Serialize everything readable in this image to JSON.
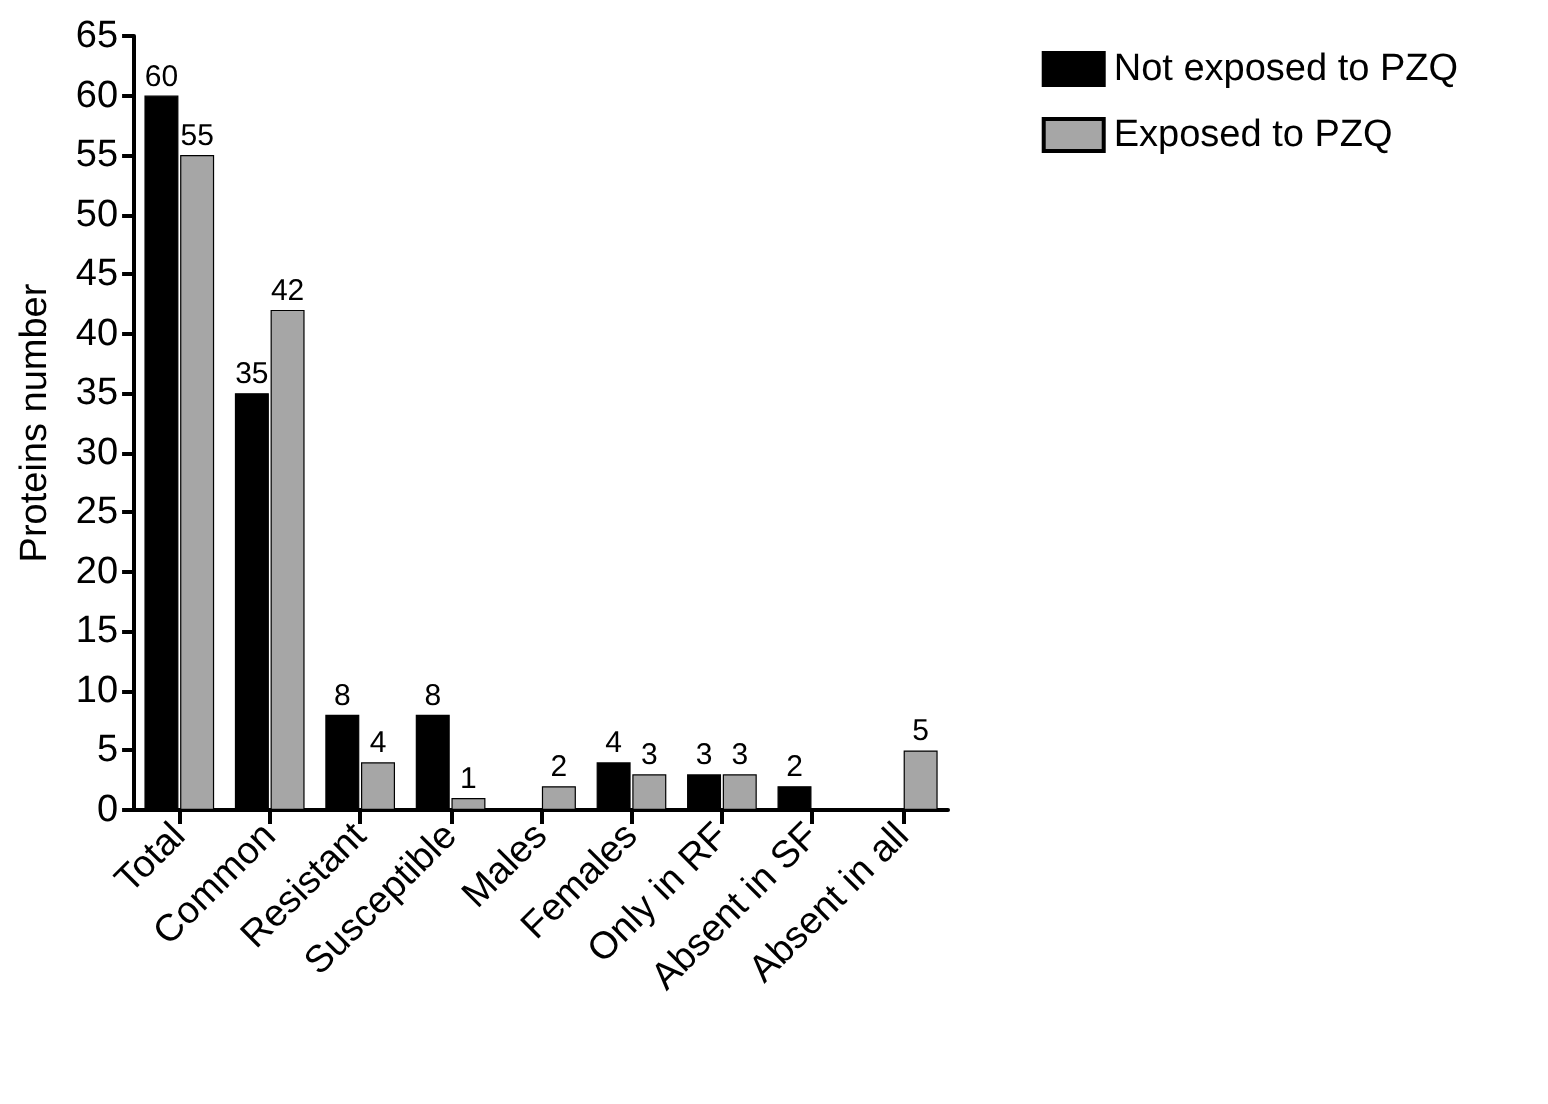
{
  "chart_data": {
    "type": "bar",
    "ylabel": "Proteins number",
    "categories": [
      "Total",
      "Common",
      "Resistant",
      "Susceptible",
      "Males",
      "Females",
      "Only in RF",
      "Absent in SF",
      "Absent in all"
    ],
    "series": [
      {
        "name": "Not exposed to PZQ",
        "color": "#000000",
        "values": [
          60,
          35,
          8,
          8,
          0,
          4,
          3,
          2,
          0
        ],
        "value_labels": [
          "60",
          "35",
          "8",
          "8",
          null,
          "4",
          "3",
          "2",
          null
        ]
      },
      {
        "name": "Exposed to PZQ",
        "color": "#a6a6a6",
        "values": [
          55,
          42,
          4,
          1,
          2,
          3,
          3,
          0,
          5
        ],
        "value_labels": [
          "55",
          "42",
          "4",
          "1",
          "2",
          "3",
          "3",
          null,
          "5"
        ]
      }
    ],
    "ylim": [
      0,
      65
    ],
    "yticks": [
      0,
      5,
      10,
      15,
      20,
      25,
      30,
      35,
      40,
      45,
      50,
      55,
      60,
      65
    ],
    "grid": false,
    "legend": "top right"
  }
}
